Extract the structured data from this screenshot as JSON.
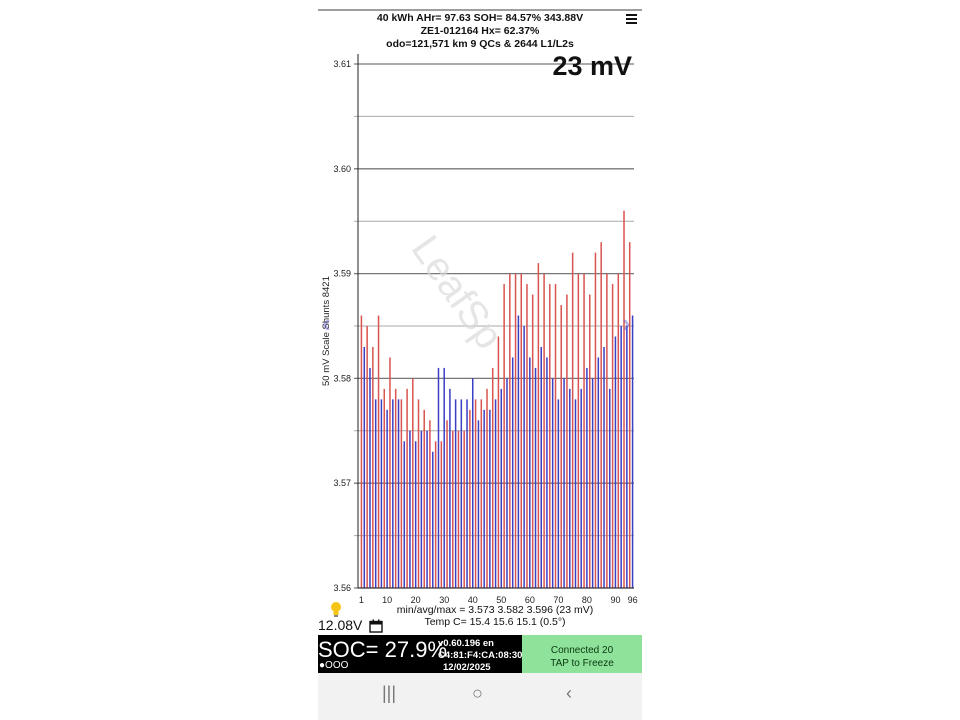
{
  "header": {
    "line1": "40 kWh  AHr= 97.63  SOH= 84.57%   343.88V",
    "line2": "ZE1-012164   Hx= 62.37%",
    "line3": "odo=121,571 km 9 QCs & 2644 L1/L2s"
  },
  "spread_label": "23 mV",
  "watermark": "LeafSp",
  "icons": {
    "menu": "menu-icon",
    "bulb": "lightbulb-icon",
    "calendar": "calendar-icon",
    "prev": "chevron-left-icon",
    "next": "chevron-right-icon",
    "recent": "recent-apps-icon",
    "home": "home-icon",
    "back": "back-icon"
  },
  "chart_data": {
    "type": "bar",
    "ylabel": "50 mV Scale  Shunts 8421",
    "ylim": [
      3.56,
      3.61
    ],
    "yticks": [
      "3.61",
      "3.60",
      "3.59",
      "3.58",
      "3.57",
      "3.56"
    ],
    "xticks": [
      "1",
      "10",
      "20",
      "30",
      "40",
      "50",
      "60",
      "70",
      "80",
      "90",
      "96"
    ],
    "grid": true,
    "colors": {
      "odd": "#d9534f",
      "even": "#3b3fc4"
    },
    "cells": [
      3.586,
      3.583,
      3.585,
      3.581,
      3.583,
      3.578,
      3.586,
      3.578,
      3.579,
      3.577,
      3.582,
      3.578,
      3.579,
      3.578,
      3.578,
      3.574,
      3.579,
      3.575,
      3.58,
      3.574,
      3.578,
      3.575,
      3.577,
      3.575,
      3.576,
      3.573,
      3.574,
      3.581,
      3.574,
      3.581,
      3.576,
      3.579,
      3.575,
      3.578,
      3.575,
      3.578,
      3.575,
      3.578,
      3.577,
      3.58,
      3.578,
      3.576,
      3.578,
      3.577,
      3.579,
      3.577,
      3.581,
      3.578,
      3.584,
      3.579,
      3.589,
      3.58,
      3.59,
      3.582,
      3.59,
      3.586,
      3.59,
      3.585,
      3.589,
      3.582,
      3.588,
      3.581,
      3.591,
      3.583,
      3.59,
      3.582,
      3.589,
      3.58,
      3.589,
      3.578,
      3.587,
      3.58,
      3.588,
      3.579,
      3.592,
      3.578,
      3.59,
      3.579,
      3.59,
      3.581,
      3.588,
      3.58,
      3.592,
      3.582,
      3.593,
      3.583,
      3.59,
      3.579,
      3.589,
      3.584,
      3.59,
      3.585,
      3.596,
      3.585,
      3.593,
      3.586
    ]
  },
  "stats": {
    "minavgmax": "min/avg/max = 3.573 3.582 3.596  (23 mV)",
    "temp": "Temp C= 15.4  15.6  15.1  (0.5°)"
  },
  "aux_voltage": "12.08V",
  "soc": {
    "label": "SOC= 27.9%",
    "dots": "●OOO",
    "version": "v0.60.196 en",
    "mac": "C4:81:F4:CA:08:30",
    "date": "12/02/2025"
  },
  "connect": {
    "status": "Connected 20",
    "hint": "TAP to Freeze"
  },
  "navbar": {
    "recent": "|||",
    "home": "○",
    "back": "‹"
  }
}
